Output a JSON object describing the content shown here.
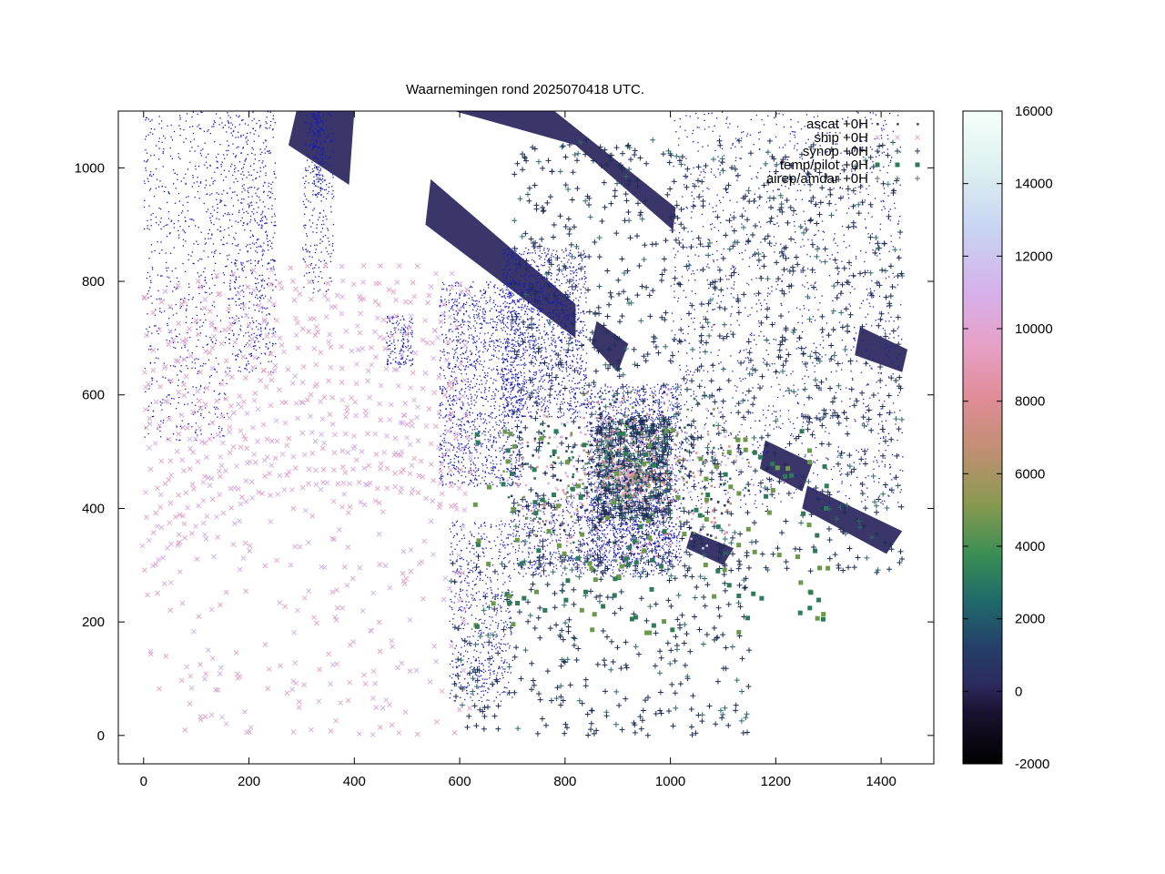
{
  "chart_data": {
    "type": "scatter",
    "title": "Waarnemingen rond 2025070418 UTC.",
    "xlabel": "",
    "ylabel": "",
    "xlim": [
      -48,
      1500
    ],
    "ylim": [
      -50,
      1100
    ],
    "x_ticks": [
      0,
      200,
      400,
      600,
      800,
      1000,
      1200,
      1400
    ],
    "y_ticks": [
      0,
      200,
      400,
      600,
      800,
      1000
    ],
    "colorbar": {
      "range": [
        -2000,
        16000
      ],
      "ticks": [
        -2000,
        0,
        2000,
        4000,
        6000,
        8000,
        10000,
        12000,
        14000,
        16000
      ]
    },
    "legend_position": "top-right",
    "series": [
      {
        "name": "ascat +0H",
        "marker": "dot",
        "color": "#2f2f66"
      },
      {
        "name": "ship +0H",
        "marker": "x",
        "color": "#e4a6c8"
      },
      {
        "name": "synop +0H",
        "marker": "plus",
        "color": "#1f3a5a"
      },
      {
        "name": "temp/pilot +0H",
        "marker": "square",
        "color": "#2e7b5a"
      },
      {
        "name": "airep/amdar +0H",
        "marker": "plus",
        "color": "#6d6d6d"
      }
    ]
  }
}
